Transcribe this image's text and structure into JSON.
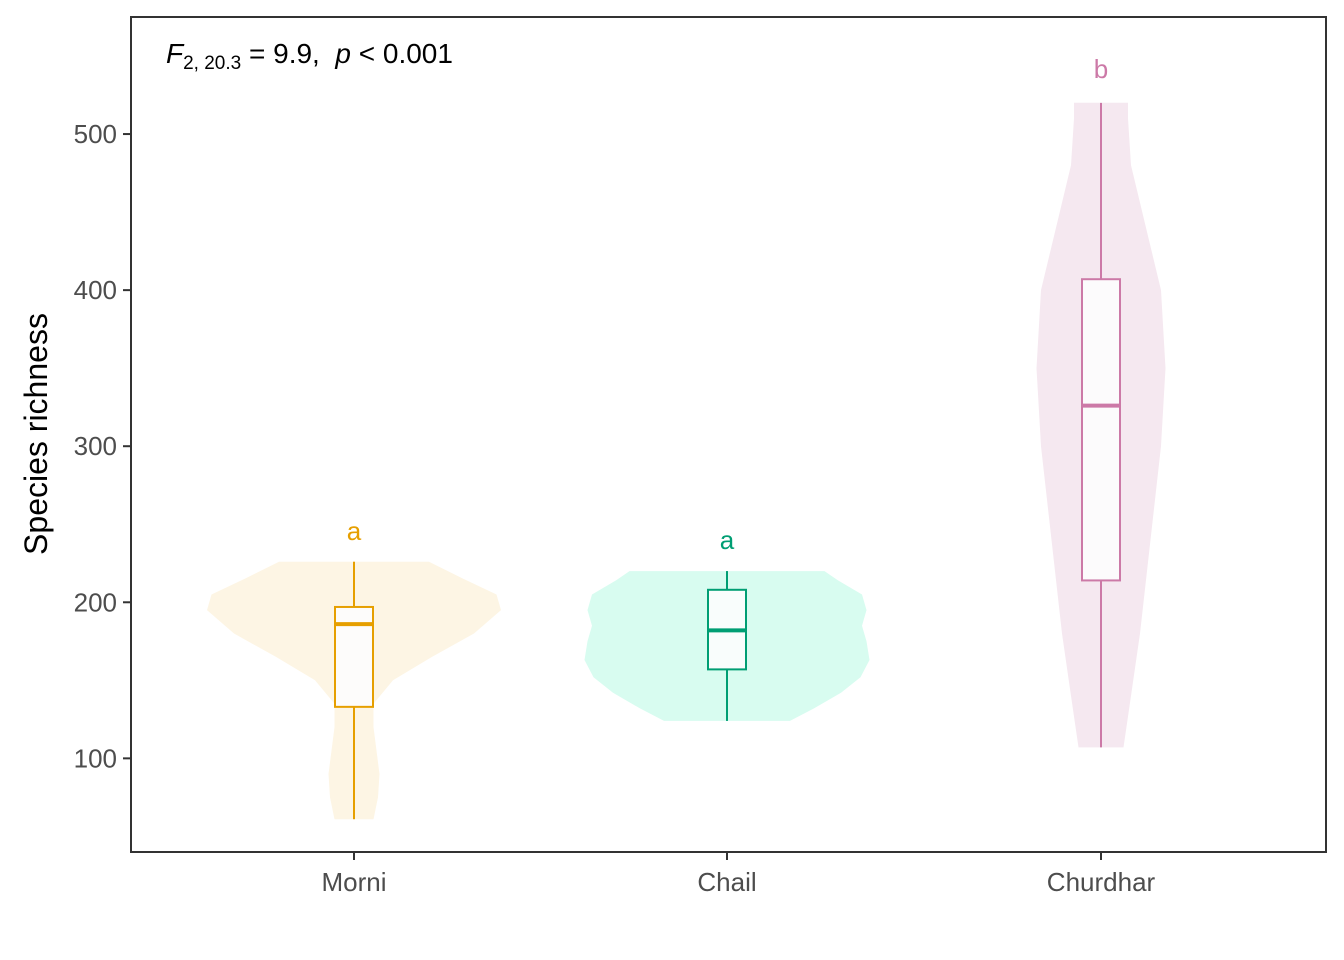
{
  "chart_data": {
    "type": "violin",
    "title": "",
    "xlabel": "",
    "ylabel": "Species richness",
    "ylim": [
      40,
      575
    ],
    "yticks": [
      100,
      200,
      300,
      400,
      500
    ],
    "categories": [
      "Morni",
      "Chail",
      "Churdhar"
    ],
    "annotation": {
      "F_symbol": "F",
      "F_subscript": "2, 20.3",
      "eq": " = 9.9,  ",
      "p_symbol": "p",
      "p_rest": " < 0.001"
    },
    "groups": [
      {
        "name": "Morni",
        "color": "#E69F00",
        "fill": "#FDF5E4",
        "letter": "a",
        "letter_y": 240,
        "box": {
          "min": 61,
          "q1": 133,
          "median": 186,
          "q3": 197,
          "max": 226
        },
        "violin": [
          [
            61,
            0.13
          ],
          [
            75,
            0.16
          ],
          [
            90,
            0.17
          ],
          [
            105,
            0.15
          ],
          [
            120,
            0.13
          ],
          [
            135,
            0.13
          ],
          [
            150,
            0.26
          ],
          [
            165,
            0.52
          ],
          [
            180,
            0.8
          ],
          [
            195,
            0.98
          ],
          [
            205,
            0.95
          ],
          [
            215,
            0.73
          ],
          [
            226,
            0.5
          ]
        ]
      },
      {
        "name": "Chail",
        "color": "#009E73",
        "fill": "#D8FCF0",
        "letter": "a",
        "letter_y": 234,
        "box": {
          "min": 124,
          "q1": 157,
          "median": 182,
          "q3": 208,
          "max": 220
        },
        "violin": [
          [
            124,
            0.42
          ],
          [
            132,
            0.58
          ],
          [
            142,
            0.76
          ],
          [
            152,
            0.89
          ],
          [
            163,
            0.95
          ],
          [
            175,
            0.93
          ],
          [
            185,
            0.9
          ],
          [
            195,
            0.93
          ],
          [
            205,
            0.9
          ],
          [
            214,
            0.74
          ],
          [
            220,
            0.65
          ]
        ]
      },
      {
        "name": "Churdhar",
        "color": "#CC79A7",
        "fill": "#F5E8F0",
        "letter": "b",
        "letter_y": 536,
        "box": {
          "min": 107,
          "q1": 214,
          "median": 326,
          "q3": 407,
          "max": 520
        },
        "violin": [
          [
            107,
            0.15
          ],
          [
            140,
            0.2
          ],
          [
            180,
            0.26
          ],
          [
            240,
            0.33
          ],
          [
            300,
            0.4
          ],
          [
            350,
            0.43
          ],
          [
            400,
            0.4
          ],
          [
            440,
            0.3
          ],
          [
            480,
            0.2
          ],
          [
            510,
            0.18
          ],
          [
            520,
            0.18
          ]
        ]
      }
    ]
  }
}
